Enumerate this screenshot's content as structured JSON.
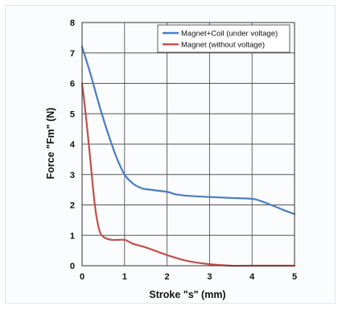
{
  "chart_data": {
    "type": "line",
    "xlabel": "Stroke \"s\" (mm)",
    "ylabel": "Force \"Fm\" (N)",
    "xlim": [
      0,
      5
    ],
    "ylim": [
      0,
      8
    ],
    "xticks": [
      "0",
      "1",
      "2",
      "3",
      "4",
      "5"
    ],
    "yticks": [
      "0",
      "1",
      "2",
      "3",
      "4",
      "5",
      "6",
      "7",
      "8"
    ],
    "grid": true,
    "legend_position": "top-right",
    "series": [
      {
        "name": "Magnet+Coil (under voltage)",
        "color": "#4a7dbf",
        "x": [
          0,
          0.2,
          0.4,
          0.6,
          0.8,
          1.0,
          1.2,
          1.4,
          1.6,
          2.0,
          2.2,
          2.5,
          3.0,
          3.5,
          4.0,
          4.2,
          4.5,
          4.8,
          5.0
        ],
        "y": [
          7.2,
          6.3,
          5.3,
          4.4,
          3.6,
          3.0,
          2.7,
          2.55,
          2.5,
          2.43,
          2.35,
          2.3,
          2.26,
          2.23,
          2.2,
          2.13,
          1.97,
          1.8,
          1.7
        ]
      },
      {
        "name": "Magnet (without voltage)",
        "color": "#c0504d",
        "x": [
          0,
          0.1,
          0.2,
          0.3,
          0.4,
          0.5,
          0.7,
          1.0,
          1.2,
          1.5,
          2.0,
          2.5,
          3.0,
          3.5,
          4.0,
          5.0
        ],
        "y": [
          6.0,
          4.8,
          3.4,
          2.0,
          1.2,
          0.95,
          0.85,
          0.85,
          0.72,
          0.6,
          0.35,
          0.15,
          0.05,
          0.0,
          0.0,
          0.0
        ]
      }
    ]
  }
}
